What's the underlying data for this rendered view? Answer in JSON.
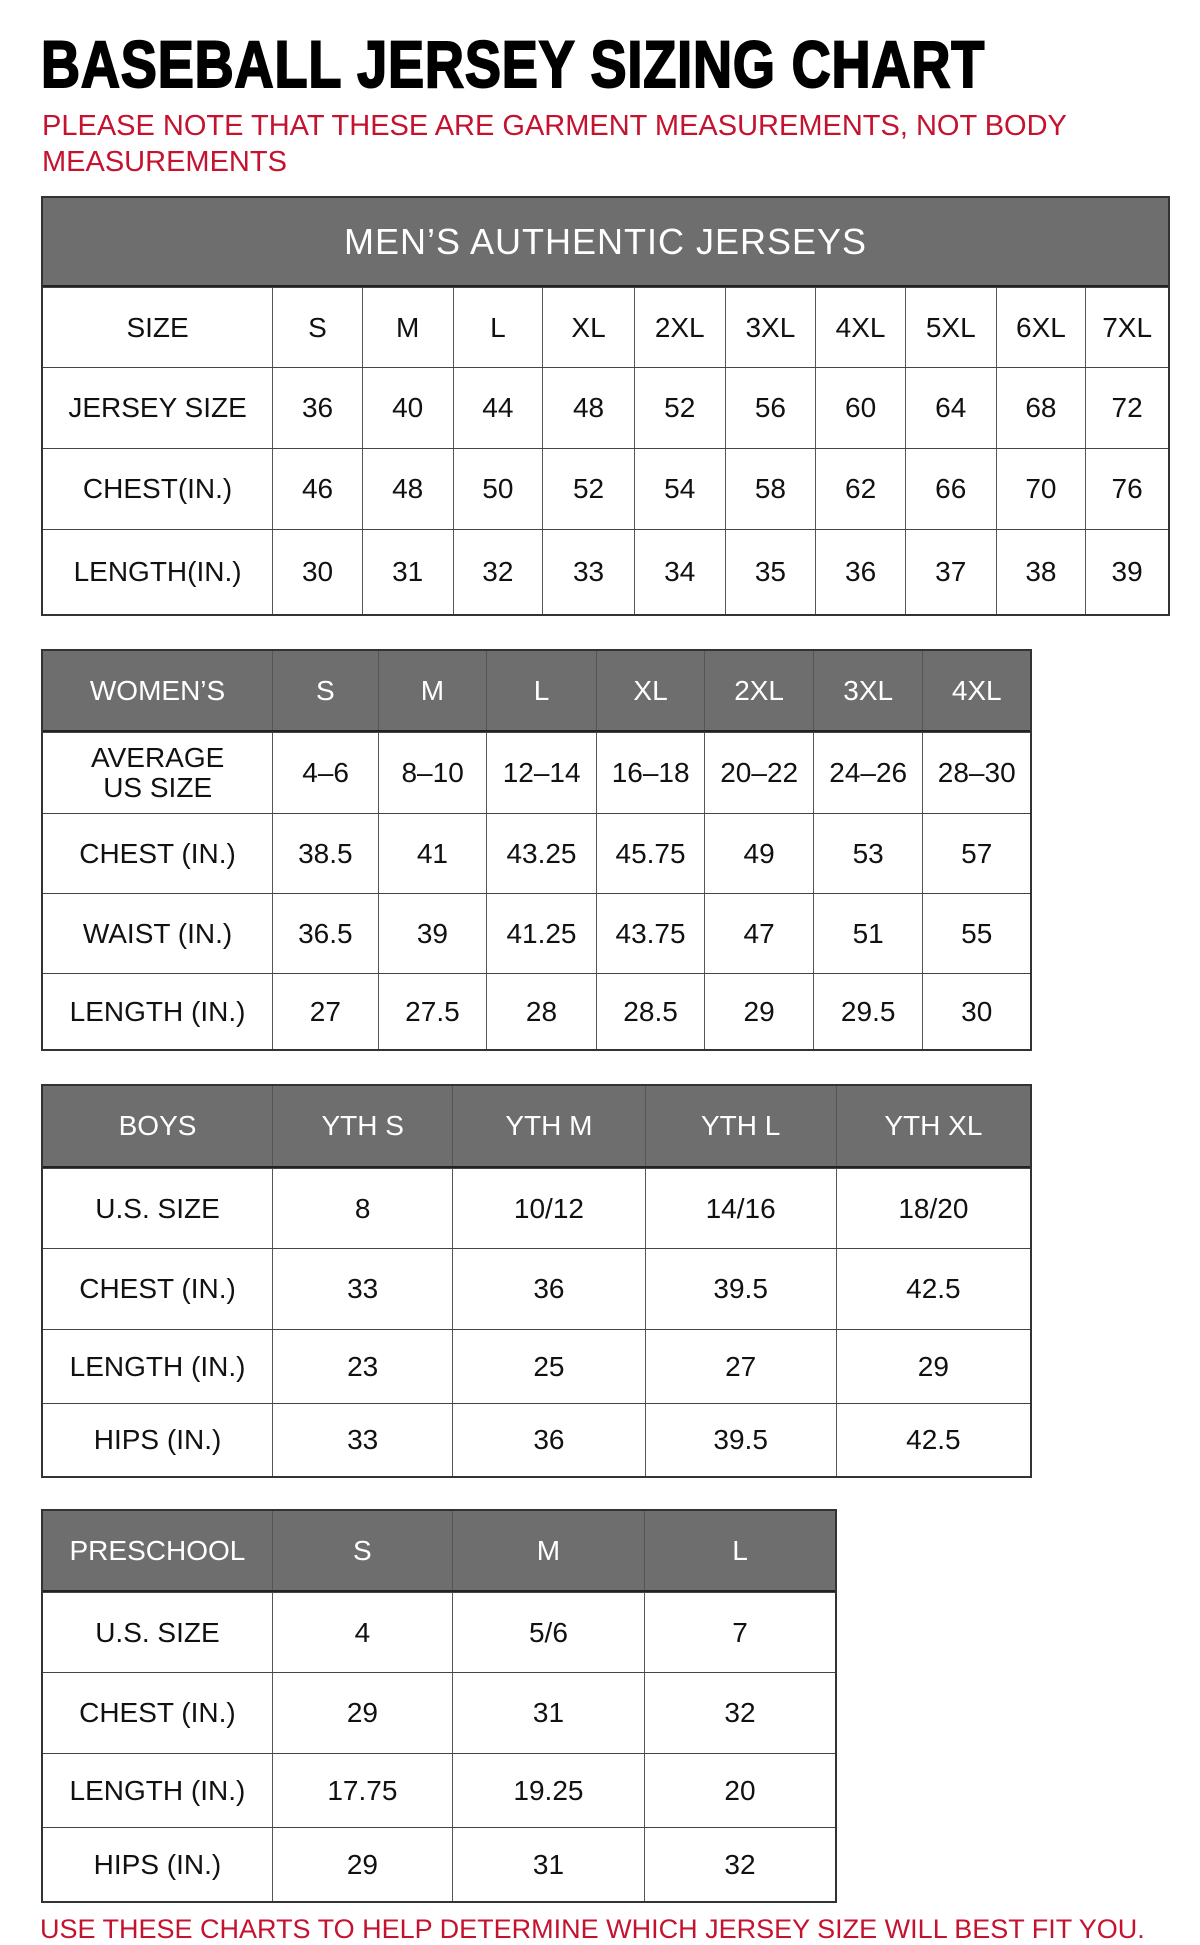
{
  "title": "BASEBALL JERSEY SIZING CHART",
  "note": "PLEASE NOTE THAT THESE ARE GARMENT MEASUREMENTS, NOT BODY MEASUREMENTS",
  "footer": "USE THESE CHARTS TO HELP DETERMINE WHICH JERSEY SIZE WILL BEST FIT YOU.",
  "colors": {
    "header_bg": "#6e6e6e",
    "accent_red": "#c4122f"
  },
  "tables": [
    {
      "id": "mens",
      "banner": "MEN’S AUTHENTIC JERSEYS",
      "header": null,
      "rows": [
        [
          "SIZE",
          "S",
          "M",
          "L",
          "XL",
          "2XL",
          "3XL",
          "4XL",
          "5XL",
          "6XL",
          "7XL"
        ],
        [
          "JERSEY SIZE",
          "36",
          "40",
          "44",
          "48",
          "52",
          "56",
          "60",
          "64",
          "68",
          "72"
        ],
        [
          "CHEST(IN.)",
          "46",
          "48",
          "50",
          "52",
          "54",
          "58",
          "62",
          "66",
          "70",
          "76"
        ],
        [
          "LENGTH(IN.)",
          "30",
          "31",
          "32",
          "33",
          "34",
          "35",
          "36",
          "37",
          "38",
          "39"
        ]
      ]
    },
    {
      "id": "womens",
      "header": [
        "WOMEN’S",
        "S",
        "M",
        "L",
        "XL",
        "2XL",
        "3XL",
        "4XL"
      ],
      "rows": [
        [
          "AVERAGE US SIZE",
          "4–6",
          "8–10",
          "12–14",
          "16–18",
          "20–22",
          "24–26",
          "28–30"
        ],
        [
          "CHEST (IN.)",
          "38.5",
          "41",
          "43.25",
          "45.75",
          "49",
          "53",
          "57"
        ],
        [
          "WAIST (IN.)",
          "36.5",
          "39",
          "41.25",
          "43.75",
          "47",
          "51",
          "55"
        ],
        [
          "LENGTH (IN.)",
          "27",
          "27.5",
          "28",
          "28.5",
          "29",
          "29.5",
          "30"
        ]
      ]
    },
    {
      "id": "boys",
      "header": [
        "BOYS",
        "YTH S",
        "YTH M",
        "YTH L",
        "YTH XL"
      ],
      "rows": [
        [
          "U.S. SIZE",
          "8",
          "10/12",
          "14/16",
          "18/20"
        ],
        [
          "CHEST (IN.)",
          "33",
          "36",
          "39.5",
          "42.5"
        ],
        [
          "LENGTH (IN.)",
          "23",
          "25",
          "27",
          "29"
        ],
        [
          "HIPS (IN.)",
          "33",
          "36",
          "39.5",
          "42.5"
        ]
      ]
    },
    {
      "id": "preschool",
      "header": [
        "PRESCHOOL",
        "S",
        "M",
        "L"
      ],
      "rows": [
        [
          "U.S. SIZE",
          "4",
          "5/6",
          "7"
        ],
        [
          "CHEST (IN.)",
          "29",
          "31",
          "32"
        ],
        [
          "LENGTH (IN.)",
          "17.75",
          "19.25",
          "20"
        ],
        [
          "HIPS (IN.)",
          "29",
          "31",
          "32"
        ]
      ]
    }
  ]
}
